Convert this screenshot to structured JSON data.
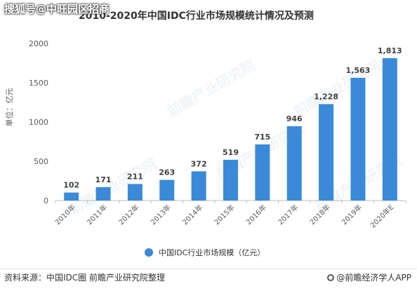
{
  "watermark_top": "搜狐号@中旺园区招商",
  "watermark_bg": "前瞻产业研究院",
  "chart_data": {
    "type": "bar",
    "title": "2010-2020年中国IDC行业市场规模统计情况及预测",
    "ylabel": "单位：亿元",
    "categories": [
      "2010年",
      "2011年",
      "2012年",
      "2013年",
      "2014年",
      "2015年",
      "2016年",
      "2017年",
      "2018年",
      "2019年",
      "2020年E"
    ],
    "series": [
      {
        "name": "中国IDC行业市场规模（亿元）",
        "values": [
          102,
          171,
          211,
          263,
          372,
          519,
          715,
          946,
          1228,
          1563,
          1813
        ],
        "labels": [
          "102",
          "171",
          "211",
          "263",
          "372",
          "519",
          "715",
          "946",
          "1,228",
          "1,563",
          "1,813"
        ]
      }
    ],
    "ylim": [
      0,
      2000
    ],
    "yticks": [
      0,
      500,
      1000,
      1500,
      2000
    ],
    "grid": false,
    "legend_position": "bottom",
    "bar_color": "#3a8ad8"
  },
  "footer": {
    "source": "资料来源：中国IDC圈 前瞻产业研究院整理",
    "brand": "@前瞻经济学人APP"
  }
}
